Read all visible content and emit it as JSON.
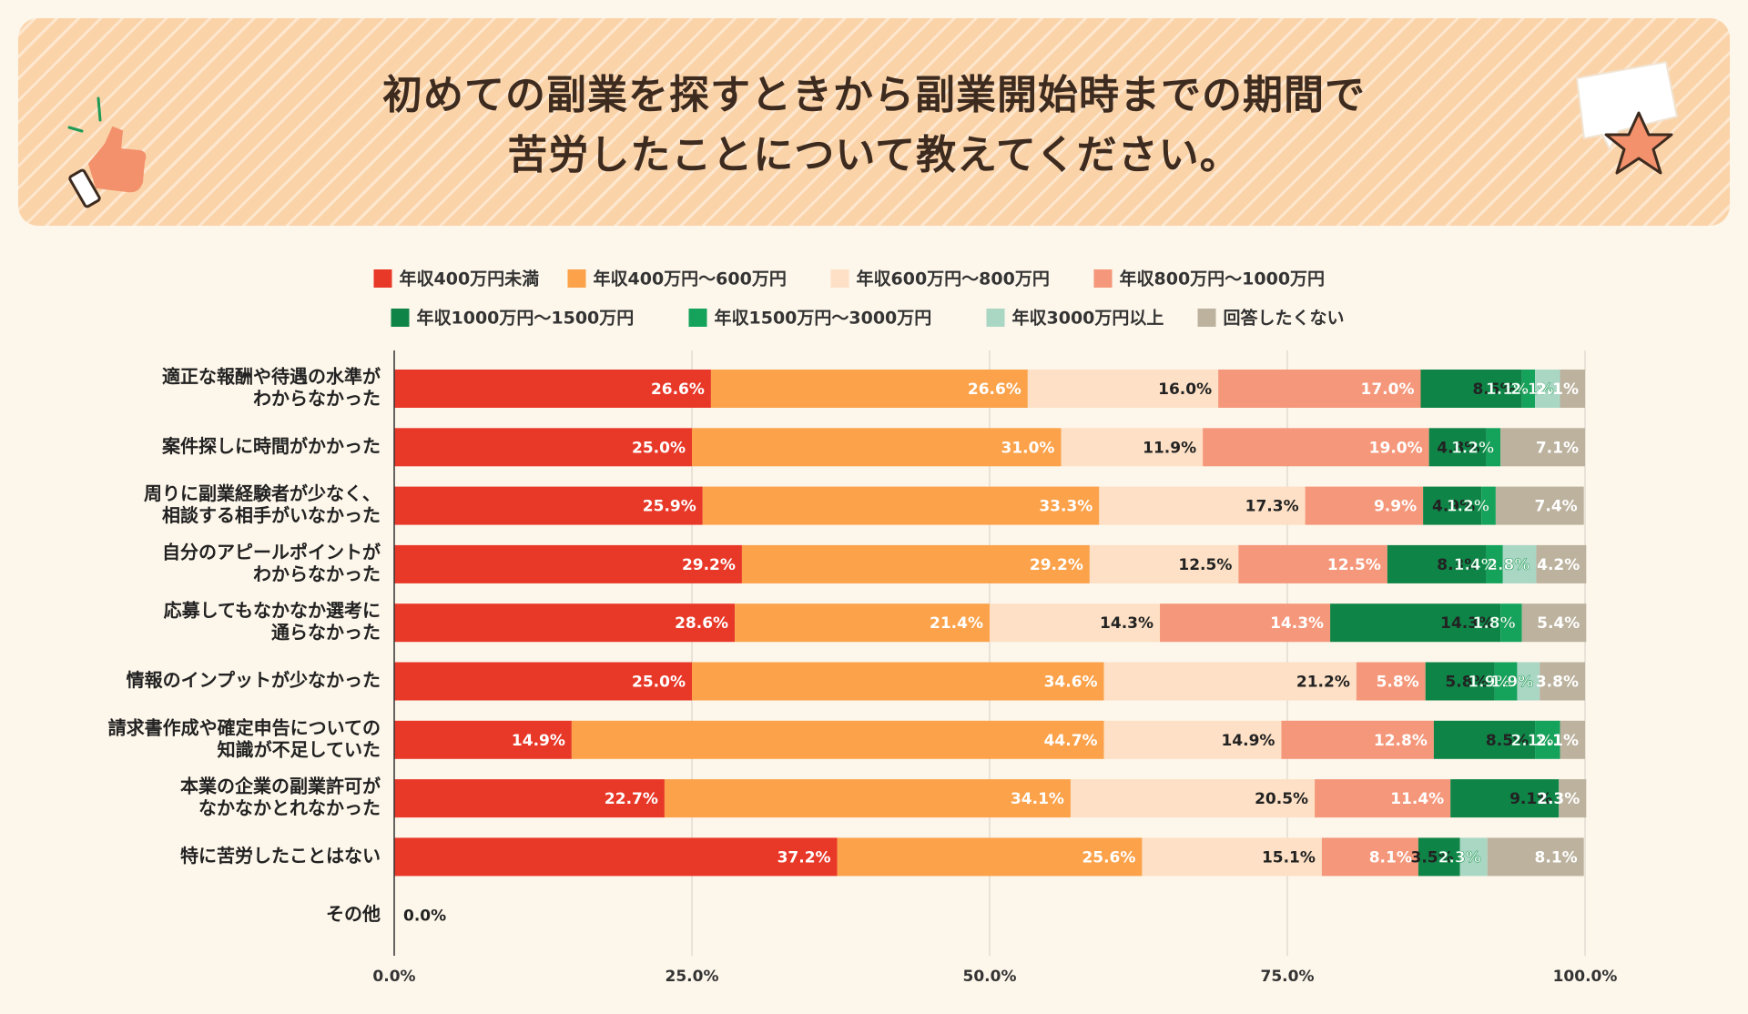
{
  "page": {
    "title_line1": "初めての副業を探すときから副業開始時までの期間で",
    "title_line2": "苦労したことについて教えてください。"
  },
  "colors": {
    "background": "#fdf6ea",
    "banner": "#fbd3a9",
    "thumb": "#f3916c",
    "star": "#f3916c"
  },
  "chart_data": {
    "type": "bar",
    "orientation": "horizontal",
    "stacked": true,
    "title": "初めての副業を探すときから副業開始時までの期間で苦労したことについて教えてください。",
    "xlim": [
      0,
      100
    ],
    "x_ticks": [
      "0.0%",
      "25.0%",
      "50.0%",
      "75.0%",
      "100.0%"
    ],
    "legend_position": "top",
    "categories": [
      "適正な報酬や待遇の水準が\nわからなかった",
      "案件探しに時間がかかった",
      "周りに副業経験者が少なく、\n相談する相手がいなかった",
      "自分のアピールポイントが\nわからなかった",
      "応募してもなかなか選考に\n通らなかった",
      "情報のインプットが少なかった",
      "請求書作成や確定申告についての\n知識が不足していた",
      "本業の企業の副業許可が\nなかなかとれなかった",
      "特に苦労したことはない",
      "その他"
    ],
    "series": [
      {
        "name": "年収400万円未満",
        "color": "#e83828",
        "values": [
          26.6,
          25.0,
          25.9,
          29.2,
          28.6,
          25.0,
          14.9,
          22.7,
          37.2,
          0.0
        ]
      },
      {
        "name": "年収400万円～600万円",
        "color": "#fba24a",
        "values": [
          26.6,
          31.0,
          33.3,
          29.2,
          21.4,
          34.6,
          44.7,
          34.1,
          25.6,
          0
        ]
      },
      {
        "name": "年収600万円～800万円",
        "color": "#fde0c5",
        "values": [
          16.0,
          11.9,
          17.3,
          12.5,
          14.3,
          21.2,
          14.9,
          20.5,
          15.1,
          0
        ]
      },
      {
        "name": "年収800万円～1000万円",
        "color": "#f5977a",
        "values": [
          17.0,
          19.0,
          9.9,
          12.5,
          14.3,
          5.8,
          12.8,
          11.4,
          8.1,
          0
        ]
      },
      {
        "name": "年収1000万円～1500万円",
        "color": "#0f8447",
        "values": [
          8.5,
          4.8,
          4.9,
          8.3,
          14.3,
          5.8,
          8.5,
          9.1,
          3.5,
          0
        ]
      },
      {
        "name": "年収1500万円～3000万円",
        "color": "#15a35c",
        "values": [
          1.1,
          1.2,
          1.2,
          1.4,
          1.8,
          1.9,
          2.1,
          0,
          0,
          0
        ]
      },
      {
        "name": "年収3000万円以上",
        "color": "#a9d7c4",
        "values": [
          2.1,
          0,
          0,
          2.8,
          0,
          1.9,
          0,
          0,
          2.3,
          0
        ]
      },
      {
        "name": "回答したくない",
        "color": "#bcb29e",
        "values": [
          2.1,
          7.1,
          7.4,
          4.2,
          5.4,
          3.8,
          2.1,
          2.3,
          8.1,
          0
        ]
      }
    ]
  }
}
